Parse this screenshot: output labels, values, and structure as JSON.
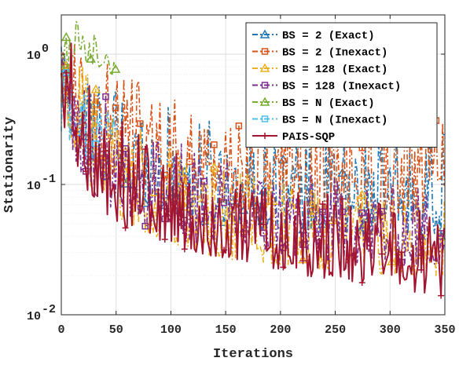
{
  "chart_data": {
    "type": "line",
    "xlabel": "Iterations",
    "ylabel": "Stationarity",
    "xlim": [
      0,
      350
    ],
    "ylim": [
      0.01,
      2
    ],
    "yscale": "log",
    "grid": true,
    "minor_grid": true,
    "legend_position": "top-right",
    "x_ticks": [
      {
        "value": 0,
        "label": "0"
      },
      {
        "value": 50,
        "label": "50"
      },
      {
        "value": 100,
        "label": "100"
      },
      {
        "value": 150,
        "label": "150"
      },
      {
        "value": 200,
        "label": "200"
      },
      {
        "value": 250,
        "label": "250"
      },
      {
        "value": 300,
        "label": "300"
      },
      {
        "value": 350,
        "label": "350"
      }
    ],
    "y_ticks": [
      {
        "value": 0.01,
        "base": "10",
        "exp": "-2"
      },
      {
        "value": 0.1,
        "base": "10",
        "exp": "-1"
      },
      {
        "value": 1,
        "base": "10",
        "exp": "0"
      }
    ],
    "series": [
      {
        "name": "BS = 2 (Exact)",
        "color": "#1f77b4",
        "line_style": "dash-dot",
        "marker": "triangle",
        "x": [
          0,
          20,
          40,
          60,
          80,
          100,
          120,
          140,
          160,
          180,
          200,
          220,
          240,
          260,
          280,
          300,
          320,
          340,
          350
        ],
        "low": [
          0.4,
          0.12,
          0.1,
          0.08,
          0.07,
          0.06,
          0.05,
          0.05,
          0.05,
          0.045,
          0.045,
          0.045,
          0.04,
          0.04,
          0.04,
          0.04,
          0.04,
          0.04,
          0.04
        ],
        "high": [
          1.5,
          1.0,
          0.7,
          0.5,
          0.45,
          0.4,
          0.35,
          0.3,
          0.3,
          0.3,
          0.25,
          0.25,
          0.25,
          0.25,
          0.25,
          0.25,
          0.25,
          0.25,
          0.25
        ]
      },
      {
        "name": "BS = 2 (Inexact)",
        "color": "#d95319",
        "line_style": "dash-dot",
        "marker": "square",
        "x": [
          0,
          20,
          40,
          60,
          80,
          100,
          120,
          140,
          160,
          180,
          200,
          220,
          240,
          260,
          280,
          300,
          320,
          340,
          350
        ],
        "low": [
          0.4,
          0.15,
          0.12,
          0.1,
          0.09,
          0.08,
          0.07,
          0.07,
          0.065,
          0.06,
          0.06,
          0.06,
          0.055,
          0.055,
          0.05,
          0.05,
          0.05,
          0.05,
          0.05
        ],
        "high": [
          1.8,
          1.1,
          0.9,
          0.7,
          0.6,
          0.55,
          0.5,
          0.5,
          0.45,
          0.45,
          0.45,
          0.45,
          0.45,
          0.45,
          0.45,
          0.45,
          0.45,
          0.4,
          0.4
        ]
      },
      {
        "name": "BS = 128 (Exact)",
        "color": "#edb120",
        "line_style": "dash-dot",
        "marker": "triangle",
        "x": [
          0,
          20,
          40,
          60,
          80,
          100,
          120,
          140,
          160,
          180,
          200,
          220,
          240,
          260,
          280,
          300,
          320,
          340,
          350
        ],
        "low": [
          0.35,
          0.1,
          0.06,
          0.05,
          0.04,
          0.035,
          0.03,
          0.028,
          0.026,
          0.025,
          0.024,
          0.023,
          0.022,
          0.022,
          0.021,
          0.02,
          0.02,
          0.02,
          0.02
        ],
        "high": [
          1.5,
          0.8,
          0.5,
          0.35,
          0.25,
          0.2,
          0.18,
          0.15,
          0.13,
          0.12,
          0.11,
          0.1,
          0.1,
          0.09,
          0.09,
          0.08,
          0.08,
          0.08,
          0.08
        ]
      },
      {
        "name": "BS = 128 (Inexact)",
        "color": "#7e2f8e",
        "line_style": "dash-dot",
        "marker": "square",
        "x": [
          0,
          20,
          40,
          60,
          80,
          100,
          120,
          140,
          160,
          180,
          200,
          220,
          240,
          260,
          280,
          300,
          320,
          340,
          350
        ],
        "low": [
          0.35,
          0.1,
          0.07,
          0.055,
          0.045,
          0.04,
          0.035,
          0.033,
          0.03,
          0.03,
          0.028,
          0.027,
          0.026,
          0.025,
          0.025,
          0.024,
          0.024,
          0.024,
          0.024
        ],
        "high": [
          1.4,
          0.8,
          0.5,
          0.35,
          0.28,
          0.22,
          0.2,
          0.17,
          0.15,
          0.14,
          0.13,
          0.12,
          0.12,
          0.11,
          0.11,
          0.1,
          0.1,
          0.1,
          0.1
        ]
      },
      {
        "name": "BS = N (Exact)",
        "color": "#77ac30",
        "line_style": "dash-dot",
        "marker": "triangle",
        "x": [
          0,
          5,
          10,
          15,
          20,
          25,
          30,
          35,
          40,
          45,
          50
        ],
        "low": [
          0.4,
          0.6,
          0.8,
          0.9,
          0.9,
          0.85,
          0.8,
          0.75,
          0.7,
          0.7,
          0.7
        ],
        "high": [
          0.9,
          1.8,
          2.0,
          1.8,
          1.7,
          1.6,
          1.5,
          1.3,
          1.1,
          1.05,
          1.0
        ]
      },
      {
        "name": "BS = N (Inexact)",
        "color": "#4dbeee",
        "line_style": "dash-dot",
        "marker": "square",
        "x": [
          0,
          10,
          20,
          30,
          40,
          50
        ],
        "low": [
          0.2,
          0.15,
          0.15,
          0.15,
          0.2,
          0.25
        ],
        "high": [
          0.9,
          0.6,
          0.6,
          0.5,
          0.5,
          0.5
        ]
      },
      {
        "name": "PAIS-SQP",
        "color": "#a2142f",
        "line_style": "solid",
        "marker": "plus",
        "x": [
          0,
          20,
          40,
          60,
          80,
          100,
          120,
          140,
          160,
          180,
          200,
          220,
          240,
          260,
          280,
          300,
          320,
          340,
          350
        ],
        "low": [
          0.3,
          0.1,
          0.06,
          0.045,
          0.04,
          0.035,
          0.03,
          0.028,
          0.026,
          0.024,
          0.022,
          0.02,
          0.019,
          0.018,
          0.017,
          0.016,
          0.015,
          0.014,
          0.013
        ],
        "high": [
          2.0,
          0.8,
          0.4,
          0.28,
          0.22,
          0.18,
          0.15,
          0.13,
          0.12,
          0.1,
          0.095,
          0.09,
          0.085,
          0.08,
          0.075,
          0.07,
          0.065,
          0.06,
          0.055
        ]
      }
    ]
  }
}
